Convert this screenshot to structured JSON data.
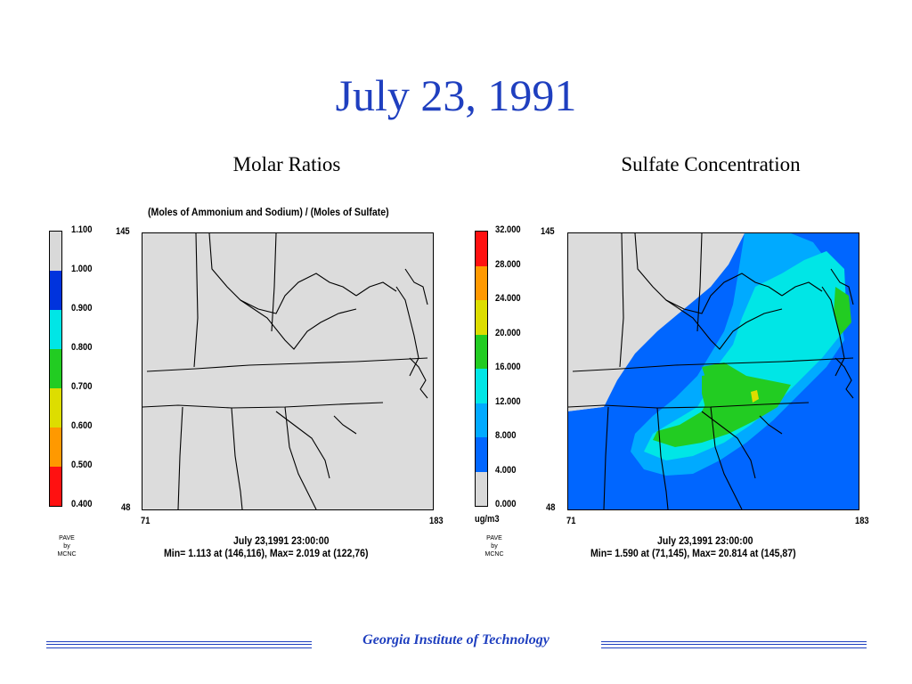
{
  "slide": {
    "title": "July 23, 1991"
  },
  "panels": [
    {
      "title": "Molar Ratios",
      "subtitle": "(Moles of Ammonium and Sodium) / (Moles of Sulfate)",
      "colorbar": {
        "labels": [
          "1.100",
          "1.000",
          "0.900",
          "0.800",
          "0.700",
          "0.600",
          "0.500",
          "0.400"
        ],
        "colors": [
          "#d9d9d9",
          "#0033dd",
          "#00e6e6",
          "#22cc22",
          "#dddd00",
          "#ff9900",
          "#ff1111"
        ],
        "unit": ""
      },
      "axes": {
        "y_top": "145",
        "y_bottom": "48",
        "x_left": "71",
        "x_right": "183"
      },
      "credit": [
        "PAVE",
        "by",
        "MCNC"
      ],
      "timestamp": "July 23,1991 23:00:00",
      "stats": "Min=   1.113 at (146,116), Max=   2.019 at (122,76)"
    },
    {
      "title": "Sulfate Concentration",
      "subtitle": "",
      "colorbar": {
        "labels": [
          "32.000",
          "28.000",
          "24.000",
          "20.000",
          "16.000",
          "12.000",
          "8.000",
          "4.000",
          "0.000"
        ],
        "colors": [
          "#ff1111",
          "#ff9900",
          "#dddd00",
          "#22cc22",
          "#00e6e6",
          "#00aaff",
          "#0066ff",
          "#d9d9d9"
        ],
        "unit": "ug/m3"
      },
      "axes": {
        "y_top": "145",
        "y_bottom": "48",
        "x_left": "71",
        "x_right": "183"
      },
      "credit": [
        "PAVE",
        "by",
        "MCNC"
      ],
      "timestamp": "July 23,1991 23:00:00",
      "stats": "Min=   1.590 at (71,145), Max=  20.814 at (145,87)"
    }
  ],
  "footer": {
    "text": "Georgia Institute of Technology"
  }
}
